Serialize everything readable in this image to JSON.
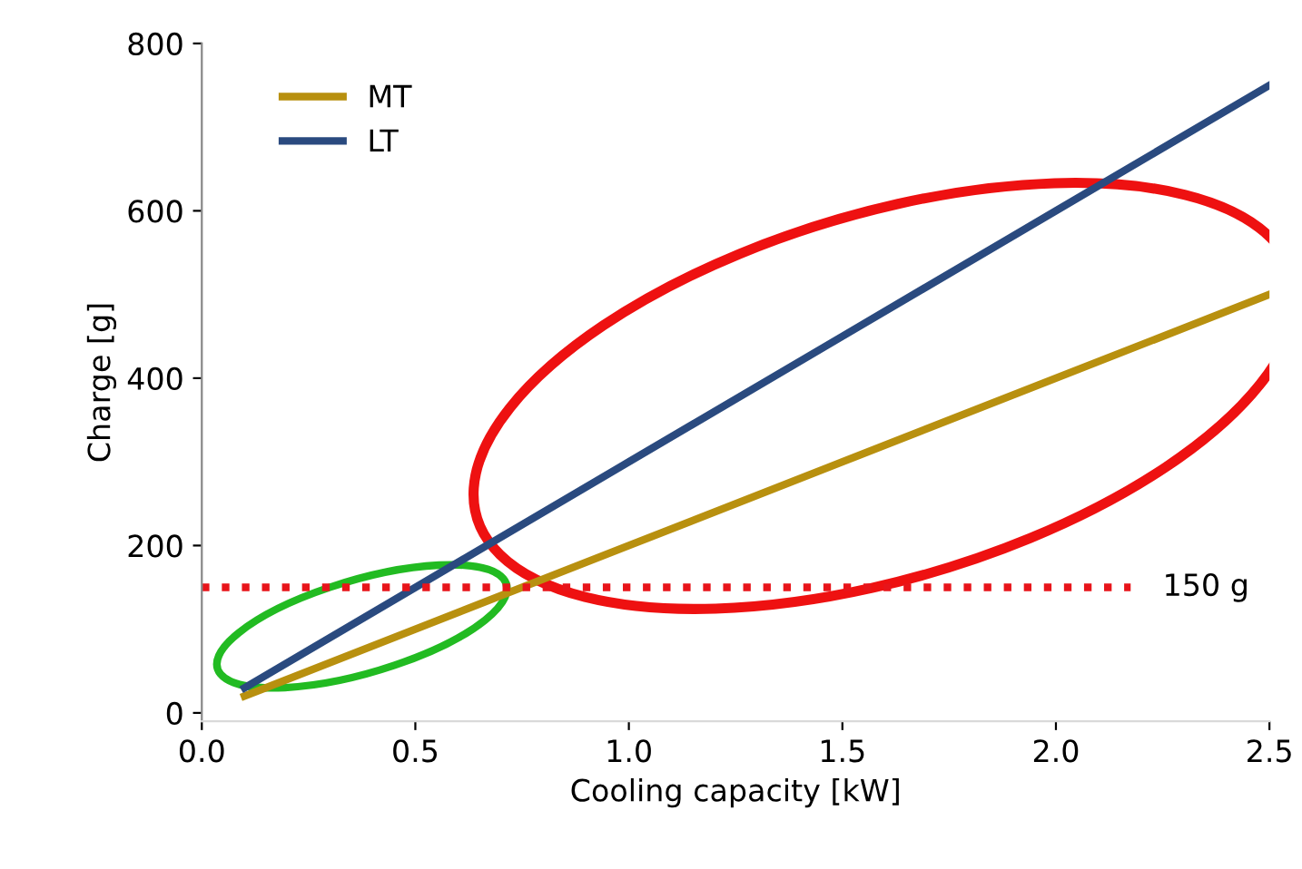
{
  "chart_data": {
    "type": "line",
    "xlabel": "Cooling capacity [kW]",
    "ylabel": "Charge [g]",
    "series": [
      {
        "name": "MT",
        "color": "#b8900f",
        "x": [
          0.1,
          0.5,
          1.0,
          1.5,
          2.0,
          2.5
        ],
        "values": [
          20,
          100,
          200,
          300,
          400,
          500
        ]
      },
      {
        "name": "LT",
        "color": "#2a4a7f",
        "x": [
          0.1,
          0.5,
          1.0,
          1.5,
          2.0,
          2.5
        ],
        "values": [
          30,
          150,
          300,
          450,
          600,
          750
        ]
      }
    ],
    "xlim": [
      0,
      2.5
    ],
    "xticks": [
      {
        "value": 0,
        "label": "0.0"
      },
      0.5,
      {
        "value": 1,
        "label": "1.0"
      },
      1.5,
      {
        "value": 2,
        "label": "2.0"
      },
      2.5
    ],
    "ylim": [
      -10,
      800
    ],
    "yticks": [
      0,
      200,
      400,
      600,
      800
    ],
    "ref_lines": [
      {
        "axis": "y",
        "value": 150,
        "label": "150 g",
        "color": "#e8141a",
        "line_style": "dotted"
      }
    ],
    "legend": "top left",
    "grid": false,
    "marker": "none",
    "line_style": "solid"
  }
}
